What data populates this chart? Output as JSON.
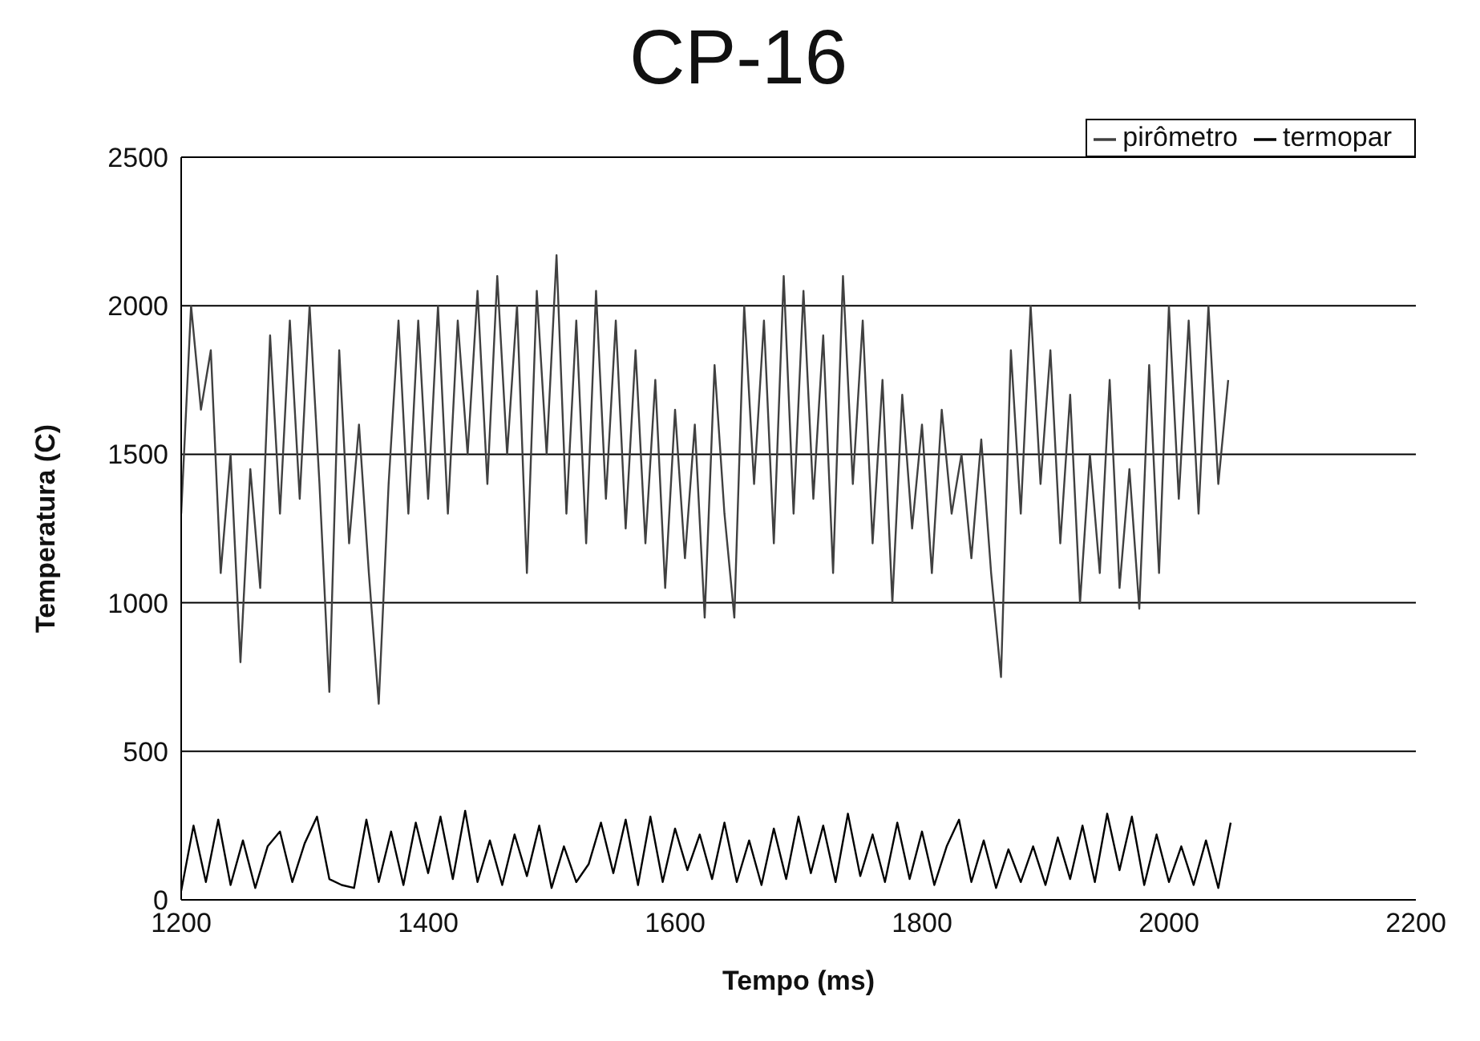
{
  "chart_data": {
    "type": "line",
    "title": "CP-16",
    "xlabel": "Tempo (ms)",
    "ylabel": "Temperatura (C)",
    "xlim": [
      1200,
      2200
    ],
    "xticks": [
      1200,
      1400,
      1600,
      1800,
      2000,
      2200
    ],
    "ylim": [
      0,
      2500
    ],
    "yticks": [
      0,
      500,
      1000,
      1500,
      2000,
      2500
    ],
    "grid": "y",
    "legend": "top right",
    "marker": "none",
    "line_style": "solid",
    "series": [
      {
        "name": "pirômetro",
        "color": "#404040",
        "x": [
          1200,
          1208,
          1216,
          1224,
          1232,
          1240,
          1248,
          1256,
          1264,
          1272,
          1280,
          1288,
          1296,
          1304,
          1312,
          1320,
          1328,
          1336,
          1344,
          1352,
          1360,
          1368,
          1376,
          1384,
          1392,
          1400,
          1408,
          1416,
          1424,
          1432,
          1440,
          1448,
          1456,
          1464,
          1472,
          1480,
          1488,
          1496,
          1504,
          1512,
          1520,
          1528,
          1536,
          1544,
          1552,
          1560,
          1568,
          1576,
          1584,
          1592,
          1600,
          1608,
          1616,
          1624,
          1632,
          1640,
          1648,
          1656,
          1664,
          1672,
          1680,
          1688,
          1696,
          1704,
          1712,
          1720,
          1728,
          1736,
          1744,
          1752,
          1760,
          1768,
          1776,
          1784,
          1792,
          1800,
          1808,
          1816,
          1824,
          1832,
          1840,
          1848,
          1856,
          1864,
          1872,
          1880,
          1888,
          1896,
          1904,
          1912,
          1920,
          1928,
          1936,
          1944,
          1952,
          1960,
          1968,
          1976,
          1984,
          1992,
          2000,
          2008,
          2016,
          2024,
          2032,
          2040,
          2048
        ],
        "values": [
          1300,
          2000,
          1650,
          1850,
          1100,
          1500,
          800,
          1450,
          1050,
          1900,
          1300,
          1950,
          1350,
          2000,
          1400,
          700,
          1850,
          1200,
          1600,
          1100,
          660,
          1400,
          1950,
          1300,
          1950,
          1350,
          2000,
          1300,
          1950,
          1500,
          2050,
          1400,
          2100,
          1500,
          2000,
          1100,
          2050,
          1500,
          2170,
          1300,
          1950,
          1200,
          2050,
          1350,
          1950,
          1250,
          1850,
          1200,
          1750,
          1050,
          1650,
          1150,
          1600,
          950,
          1800,
          1300,
          950,
          2000,
          1400,
          1950,
          1200,
          2100,
          1300,
          2050,
          1350,
          1900,
          1100,
          2100,
          1400,
          1950,
          1200,
          1750,
          1000,
          1700,
          1250,
          1600,
          1100,
          1650,
          1300,
          1500,
          1150,
          1550,
          1100,
          750,
          1850,
          1300,
          2000,
          1400,
          1850,
          1200,
          1700,
          1000,
          1500,
          1100,
          1750,
          1050,
          1450,
          980,
          1800,
          1100,
          2000,
          1350,
          1950,
          1300,
          2000,
          1400,
          1750
        ]
      },
      {
        "name": "termopar",
        "color": "#000000",
        "x": [
          1200,
          1210,
          1220,
          1230,
          1240,
          1250,
          1260,
          1270,
          1280,
          1290,
          1300,
          1310,
          1320,
          1330,
          1340,
          1350,
          1360,
          1370,
          1380,
          1390,
          1400,
          1410,
          1420,
          1430,
          1440,
          1450,
          1460,
          1470,
          1480,
          1490,
          1500,
          1510,
          1520,
          1530,
          1540,
          1550,
          1560,
          1570,
          1580,
          1590,
          1600,
          1610,
          1620,
          1630,
          1640,
          1650,
          1660,
          1670,
          1680,
          1690,
          1700,
          1710,
          1720,
          1730,
          1740,
          1750,
          1760,
          1770,
          1780,
          1790,
          1800,
          1810,
          1820,
          1830,
          1840,
          1850,
          1860,
          1870,
          1880,
          1890,
          1900,
          1910,
          1920,
          1930,
          1940,
          1950,
          1960,
          1970,
          1980,
          1990,
          2000,
          2010,
          2020,
          2030,
          2040,
          2050
        ],
        "values": [
          30,
          250,
          60,
          270,
          50,
          200,
          40,
          180,
          230,
          60,
          190,
          280,
          70,
          50,
          40,
          270,
          60,
          230,
          50,
          260,
          90,
          280,
          70,
          300,
          60,
          200,
          50,
          220,
          80,
          250,
          40,
          180,
          60,
          120,
          260,
          90,
          270,
          50,
          280,
          60,
          240,
          100,
          220,
          70,
          260,
          60,
          200,
          50,
          240,
          70,
          280,
          90,
          250,
          60,
          290,
          80,
          220,
          60,
          260,
          70,
          230,
          50,
          180,
          270,
          60,
          200,
          40,
          170,
          60,
          180,
          50,
          210,
          70,
          250,
          60,
          290,
          100,
          280,
          50,
          220,
          60,
          180,
          50,
          200,
          40,
          260
        ]
      }
    ]
  }
}
